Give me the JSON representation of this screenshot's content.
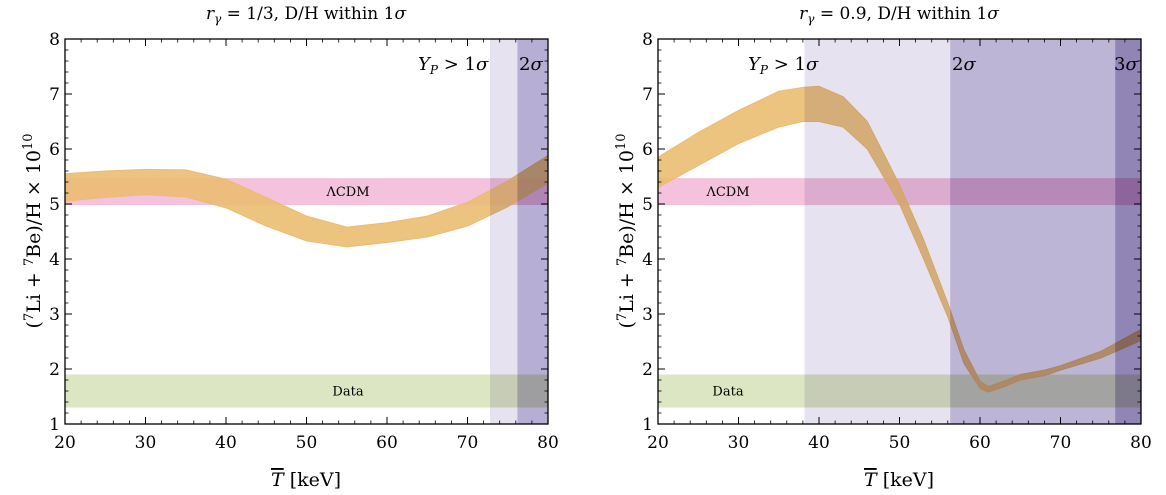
{
  "chart_data": [
    {
      "type": "area",
      "title": "r_γ = 1/3,  D/H within 1σ",
      "xlabel": "T̄ [keV]",
      "ylabel": "(⁷Li + ⁷Be)/H × 10¹⁰",
      "xlim": [
        20,
        80
      ],
      "ylim": [
        1,
        8
      ],
      "xticks": [
        "20",
        "30",
        "40",
        "50",
        "60",
        "70",
        "80"
      ],
      "yticks": [
        "1",
        "2",
        "3",
        "4",
        "5",
        "6",
        "7",
        "8"
      ],
      "bands": [
        {
          "name": "ΛCDM",
          "y": [
            4.98,
            5.47
          ],
          "color": "#f4c2dc"
        },
        {
          "name": "Data",
          "y": [
            1.3,
            1.9
          ],
          "color": "#dce6c2"
        }
      ],
      "excluded_regions": [
        {
          "label": "Y_P > 1σ",
          "x": [
            72.8,
            80
          ],
          "color": "#e6e2f0"
        },
        {
          "label": "2σ",
          "x": [
            76.2,
            80
          ],
          "color": "#cbc5e1"
        }
      ],
      "series": [
        {
          "color": "#ebbc72",
          "x": [
            20,
            25,
            30,
            35,
            40,
            45,
            50,
            55,
            60,
            65,
            70,
            75,
            80
          ],
          "lower": [
            5.05,
            5.12,
            5.17,
            5.13,
            4.93,
            4.6,
            4.33,
            4.22,
            4.3,
            4.4,
            4.6,
            4.95,
            5.38
          ],
          "upper": [
            5.55,
            5.6,
            5.63,
            5.62,
            5.45,
            5.12,
            4.78,
            4.58,
            4.66,
            4.78,
            5.03,
            5.42,
            5.88
          ]
        }
      ]
    },
    {
      "type": "area",
      "title": "r_γ = 0.9,  D/H within 1σ",
      "xlabel": "T̄ [keV]",
      "ylabel": "(⁷Li + ⁷Be)/H × 10¹⁰",
      "xlim": [
        20,
        80
      ],
      "ylim": [
        1,
        8
      ],
      "xticks": [
        "20",
        "30",
        "40",
        "50",
        "60",
        "70",
        "80"
      ],
      "yticks": [
        "1",
        "2",
        "3",
        "4",
        "5",
        "6",
        "7",
        "8"
      ],
      "bands": [
        {
          "name": "ΛCDM",
          "y": [
            4.98,
            5.47
          ],
          "color": "#f4c2dc"
        },
        {
          "name": "Data",
          "y": [
            1.3,
            1.9
          ],
          "color": "#dce6c2"
        }
      ],
      "excluded_regions": [
        {
          "label": "Y_P > 1σ",
          "x": [
            38.2,
            80
          ],
          "color": "#e6e2f0"
        },
        {
          "label": "2σ",
          "x": [
            56.3,
            80
          ],
          "color": "#d2cce3"
        },
        {
          "label": "3σ",
          "x": [
            76.8,
            80
          ],
          "color": "#c4bbd9"
        }
      ],
      "series": [
        {
          "color": "#ebbc72",
          "x": [
            20,
            25,
            30,
            35,
            38,
            40,
            43,
            46,
            50,
            53,
            56,
            58,
            60,
            61,
            63,
            65,
            68,
            70,
            75,
            80
          ],
          "lower": [
            5.3,
            5.7,
            6.1,
            6.4,
            6.5,
            6.5,
            6.4,
            6.0,
            5.0,
            4.0,
            2.95,
            2.1,
            1.65,
            1.58,
            1.68,
            1.8,
            1.88,
            1.98,
            2.2,
            2.52
          ],
          "upper": [
            5.85,
            6.3,
            6.7,
            7.05,
            7.12,
            7.14,
            6.95,
            6.5,
            5.35,
            4.35,
            3.2,
            2.35,
            1.78,
            1.68,
            1.78,
            1.9,
            1.98,
            2.06,
            2.32,
            2.72
          ]
        }
      ]
    }
  ]
}
